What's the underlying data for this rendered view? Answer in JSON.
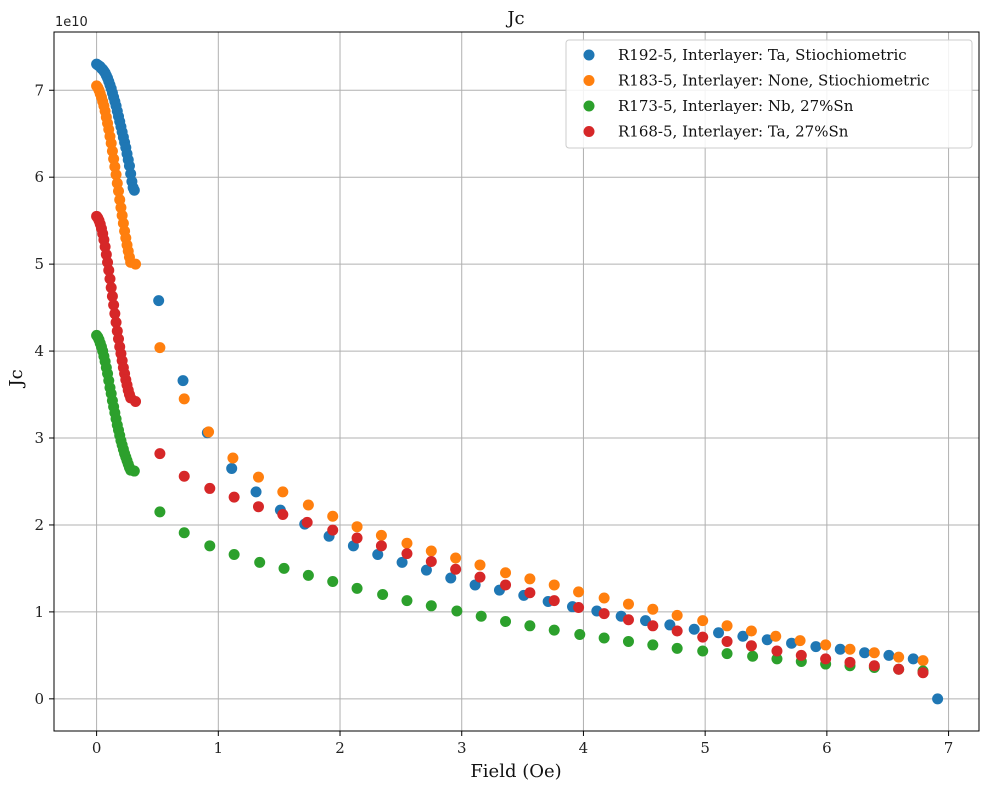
{
  "chart_data": {
    "type": "scatter",
    "title": "Jc",
    "xlabel": "Field (Oe)",
    "ylabel": "Jc",
    "y_offset_label": "1e10",
    "xlim": [
      -0.35,
      7.25
    ],
    "ylim": [
      -0.37,
      7.67
    ],
    "xticks": [
      0,
      1,
      2,
      3,
      4,
      5,
      6,
      7
    ],
    "yticks": [
      0,
      1,
      2,
      3,
      4,
      5,
      6,
      7
    ],
    "y_scale_unit": 10000000000.0,
    "grid": true,
    "legend_position": "top-right",
    "series": [
      {
        "name": "R192-5, Interlayer: Ta, Stiochiometric",
        "color": "#1f77b4",
        "points": [
          [
            0.0,
            7.3
          ],
          [
            0.01,
            7.29
          ],
          [
            0.02,
            7.28
          ],
          [
            0.03,
            7.27
          ],
          [
            0.04,
            7.25
          ],
          [
            0.05,
            7.24
          ],
          [
            0.06,
            7.22
          ],
          [
            0.07,
            7.2
          ],
          [
            0.08,
            7.17
          ],
          [
            0.09,
            7.14
          ],
          [
            0.1,
            7.1
          ],
          [
            0.11,
            7.06
          ],
          [
            0.12,
            7.02
          ],
          [
            0.13,
            6.97
          ],
          [
            0.14,
            6.92
          ],
          [
            0.15,
            6.87
          ],
          [
            0.16,
            6.82
          ],
          [
            0.17,
            6.76
          ],
          [
            0.18,
            6.7
          ],
          [
            0.19,
            6.64
          ],
          [
            0.2,
            6.58
          ],
          [
            0.21,
            6.52
          ],
          [
            0.22,
            6.46
          ],
          [
            0.23,
            6.4
          ],
          [
            0.24,
            6.34
          ],
          [
            0.25,
            6.27
          ],
          [
            0.26,
            6.2
          ],
          [
            0.27,
            6.13
          ],
          [
            0.28,
            6.04
          ],
          [
            0.29,
            5.95
          ],
          [
            0.3,
            5.88
          ],
          [
            0.31,
            5.85
          ],
          [
            0.51,
            4.58
          ],
          [
            0.71,
            3.66
          ],
          [
            0.91,
            3.06
          ],
          [
            1.11,
            2.65
          ],
          [
            1.31,
            2.38
          ],
          [
            1.51,
            2.17
          ],
          [
            1.71,
            2.01
          ],
          [
            1.91,
            1.87
          ],
          [
            2.11,
            1.76
          ],
          [
            2.31,
            1.66
          ],
          [
            2.51,
            1.57
          ],
          [
            2.71,
            1.48
          ],
          [
            2.91,
            1.39
          ],
          [
            3.11,
            1.31
          ],
          [
            3.31,
            1.25
          ],
          [
            3.51,
            1.19
          ],
          [
            3.71,
            1.12
          ],
          [
            3.91,
            1.06
          ],
          [
            4.11,
            1.01
          ],
          [
            4.31,
            0.95
          ],
          [
            4.51,
            0.9
          ],
          [
            4.71,
            0.85
          ],
          [
            4.91,
            0.8
          ],
          [
            5.11,
            0.76
          ],
          [
            5.31,
            0.72
          ],
          [
            5.51,
            0.68
          ],
          [
            5.71,
            0.64
          ],
          [
            5.91,
            0.6
          ],
          [
            6.11,
            0.57
          ],
          [
            6.31,
            0.53
          ],
          [
            6.51,
            0.5
          ],
          [
            6.71,
            0.46
          ],
          [
            6.91,
            0.0
          ]
        ]
      },
      {
        "name": "R183-5, Interlayer: None, Stiochiometric",
        "color": "#ff7f0e",
        "points": [
          [
            0.0,
            7.05
          ],
          [
            0.01,
            7.03
          ],
          [
            0.02,
            7.0
          ],
          [
            0.03,
            6.96
          ],
          [
            0.04,
            6.92
          ],
          [
            0.05,
            6.87
          ],
          [
            0.06,
            6.82
          ],
          [
            0.07,
            6.76
          ],
          [
            0.08,
            6.69
          ],
          [
            0.09,
            6.62
          ],
          [
            0.1,
            6.55
          ],
          [
            0.11,
            6.47
          ],
          [
            0.12,
            6.39
          ],
          [
            0.13,
            6.3
          ],
          [
            0.14,
            6.21
          ],
          [
            0.15,
            6.12
          ],
          [
            0.16,
            6.03
          ],
          [
            0.17,
            5.93
          ],
          [
            0.18,
            5.84
          ],
          [
            0.19,
            5.74
          ],
          [
            0.2,
            5.65
          ],
          [
            0.21,
            5.56
          ],
          [
            0.22,
            5.47
          ],
          [
            0.23,
            5.38
          ],
          [
            0.24,
            5.3
          ],
          [
            0.25,
            5.22
          ],
          [
            0.26,
            5.15
          ],
          [
            0.27,
            5.08
          ],
          [
            0.28,
            5.02
          ],
          [
            0.32,
            5.0
          ],
          [
            0.52,
            4.04
          ],
          [
            0.72,
            3.45
          ],
          [
            0.92,
            3.07
          ],
          [
            1.12,
            2.77
          ],
          [
            1.33,
            2.55
          ],
          [
            1.53,
            2.38
          ],
          [
            1.74,
            2.23
          ],
          [
            1.94,
            2.1
          ],
          [
            2.14,
            1.98
          ],
          [
            2.34,
            1.88
          ],
          [
            2.55,
            1.79
          ],
          [
            2.75,
            1.7
          ],
          [
            2.95,
            1.62
          ],
          [
            3.15,
            1.54
          ],
          [
            3.36,
            1.45
          ],
          [
            3.56,
            1.38
          ],
          [
            3.76,
            1.31
          ],
          [
            3.96,
            1.23
          ],
          [
            4.17,
            1.16
          ],
          [
            4.37,
            1.09
          ],
          [
            4.57,
            1.03
          ],
          [
            4.77,
            0.96
          ],
          [
            4.98,
            0.9
          ],
          [
            5.18,
            0.84
          ],
          [
            5.38,
            0.78
          ],
          [
            5.58,
            0.72
          ],
          [
            5.78,
            0.67
          ],
          [
            5.99,
            0.62
          ],
          [
            6.19,
            0.57
          ],
          [
            6.39,
            0.53
          ],
          [
            6.59,
            0.48
          ],
          [
            6.79,
            0.44
          ]
        ]
      },
      {
        "name": "R173-5, Interlayer: Nb, 27%Sn",
        "color": "#2ca02c",
        "points": [
          [
            0.0,
            4.18
          ],
          [
            0.01,
            4.16
          ],
          [
            0.02,
            4.13
          ],
          [
            0.03,
            4.09
          ],
          [
            0.04,
            4.05
          ],
          [
            0.05,
            4.0
          ],
          [
            0.06,
            3.94
          ],
          [
            0.07,
            3.88
          ],
          [
            0.08,
            3.81
          ],
          [
            0.09,
            3.74
          ],
          [
            0.1,
            3.66
          ],
          [
            0.11,
            3.58
          ],
          [
            0.12,
            3.51
          ],
          [
            0.13,
            3.43
          ],
          [
            0.14,
            3.36
          ],
          [
            0.15,
            3.29
          ],
          [
            0.16,
            3.22
          ],
          [
            0.17,
            3.15
          ],
          [
            0.18,
            3.09
          ],
          [
            0.19,
            3.03
          ],
          [
            0.2,
            2.97
          ],
          [
            0.21,
            2.92
          ],
          [
            0.22,
            2.87
          ],
          [
            0.23,
            2.82
          ],
          [
            0.24,
            2.78
          ],
          [
            0.25,
            2.74
          ],
          [
            0.26,
            2.7
          ],
          [
            0.27,
            2.66
          ],
          [
            0.28,
            2.63
          ],
          [
            0.31,
            2.62
          ],
          [
            0.52,
            2.15
          ],
          [
            0.72,
            1.91
          ],
          [
            0.93,
            1.76
          ],
          [
            1.13,
            1.66
          ],
          [
            1.34,
            1.57
          ],
          [
            1.54,
            1.5
          ],
          [
            1.74,
            1.42
          ],
          [
            1.94,
            1.35
          ],
          [
            2.14,
            1.27
          ],
          [
            2.35,
            1.2
          ],
          [
            2.55,
            1.13
          ],
          [
            2.75,
            1.07
          ],
          [
            2.96,
            1.01
          ],
          [
            3.16,
            0.95
          ],
          [
            3.36,
            0.89
          ],
          [
            3.56,
            0.84
          ],
          [
            3.76,
            0.79
          ],
          [
            3.97,
            0.74
          ],
          [
            4.17,
            0.7
          ],
          [
            4.37,
            0.66
          ],
          [
            4.57,
            0.62
          ],
          [
            4.77,
            0.58
          ],
          [
            4.98,
            0.55
          ],
          [
            5.18,
            0.52
          ],
          [
            5.39,
            0.49
          ],
          [
            5.59,
            0.46
          ],
          [
            5.79,
            0.43
          ],
          [
            5.99,
            0.4
          ],
          [
            6.19,
            0.38
          ],
          [
            6.39,
            0.36
          ],
          [
            6.59,
            0.34
          ],
          [
            6.79,
            0.32
          ]
        ]
      },
      {
        "name": "R168-5, Interlayer: Ta, 27%Sn",
        "color": "#d62728",
        "points": [
          [
            0.0,
            5.55
          ],
          [
            0.01,
            5.53
          ],
          [
            0.02,
            5.5
          ],
          [
            0.03,
            5.46
          ],
          [
            0.04,
            5.41
          ],
          [
            0.05,
            5.35
          ],
          [
            0.06,
            5.28
          ],
          [
            0.07,
            5.2
          ],
          [
            0.08,
            5.11
          ],
          [
            0.09,
            5.02
          ],
          [
            0.1,
            4.93
          ],
          [
            0.11,
            4.83
          ],
          [
            0.12,
            4.73
          ],
          [
            0.13,
            4.63
          ],
          [
            0.14,
            4.53
          ],
          [
            0.15,
            4.43
          ],
          [
            0.16,
            4.33
          ],
          [
            0.17,
            4.23
          ],
          [
            0.18,
            4.14
          ],
          [
            0.19,
            4.05
          ],
          [
            0.2,
            3.97
          ],
          [
            0.21,
            3.89
          ],
          [
            0.22,
            3.81
          ],
          [
            0.23,
            3.74
          ],
          [
            0.24,
            3.67
          ],
          [
            0.25,
            3.61
          ],
          [
            0.26,
            3.55
          ],
          [
            0.27,
            3.5
          ],
          [
            0.28,
            3.46
          ],
          [
            0.32,
            3.42
          ],
          [
            0.52,
            2.82
          ],
          [
            0.72,
            2.56
          ],
          [
            0.93,
            2.42
          ],
          [
            1.13,
            2.32
          ],
          [
            1.33,
            2.21
          ],
          [
            1.53,
            2.12
          ],
          [
            1.73,
            2.03
          ],
          [
            1.94,
            1.94
          ],
          [
            2.14,
            1.85
          ],
          [
            2.34,
            1.76
          ],
          [
            2.55,
            1.67
          ],
          [
            2.75,
            1.58
          ],
          [
            2.95,
            1.49
          ],
          [
            3.15,
            1.4
          ],
          [
            3.36,
            1.31
          ],
          [
            3.56,
            1.22
          ],
          [
            3.76,
            1.13
          ],
          [
            3.96,
            1.05
          ],
          [
            4.17,
            0.98
          ],
          [
            4.37,
            0.91
          ],
          [
            4.57,
            0.84
          ],
          [
            4.77,
            0.78
          ],
          [
            4.98,
            0.71
          ],
          [
            5.18,
            0.66
          ],
          [
            5.38,
            0.61
          ],
          [
            5.59,
            0.55
          ],
          [
            5.79,
            0.5
          ],
          [
            5.99,
            0.46
          ],
          [
            6.19,
            0.42
          ],
          [
            6.39,
            0.38
          ],
          [
            6.59,
            0.34
          ],
          [
            6.79,
            0.3
          ]
        ]
      }
    ]
  }
}
